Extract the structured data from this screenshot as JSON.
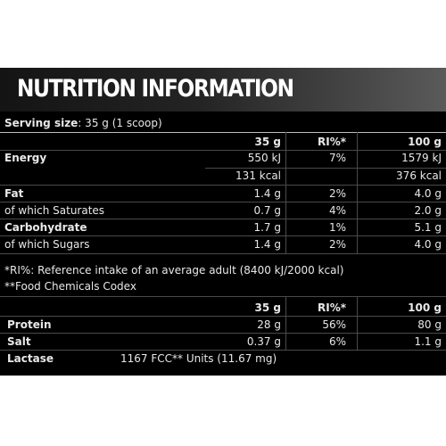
{
  "title": "NUTRITION INFORMATION",
  "serving_label": "Serving size",
  "serving_value": ": 35 g (1 scoop)",
  "table1": {
    "col_35g": "35 g",
    "col_ri": "RI%*",
    "col_100g": "100 g",
    "rows": [
      {
        "name": "Energy",
        "v35": "550 kJ",
        "ri": "7%",
        "v100": "1579 kJ"
      },
      {
        "name": "",
        "v35": "131 kcal",
        "ri": "",
        "v100": "376 kcal"
      },
      {
        "name": "Fat",
        "v35": "1.4 g",
        "ri": "2%",
        "v100": "4.0 g"
      },
      {
        "name": "of which Saturates",
        "v35": "0.7 g",
        "ri": "4%",
        "v100": "2.0 g"
      },
      {
        "name": "Carbohydrate",
        "v35": "1.7 g",
        "ri": "1%",
        "v100": "5.1 g"
      },
      {
        "name": "of which Sugars",
        "v35": "1.4 g",
        "ri": "2%",
        "v100": "4.0 g"
      }
    ]
  },
  "footnotes": [
    "*RI%: Reference intake of an average adult (8400 kJ/2000 kcal)",
    "**Food Chemicals Codex"
  ],
  "table2": {
    "col_35g": "35 g",
    "col_ri": "RI%*",
    "col_100g": "100 g",
    "rows": [
      {
        "name": "Protein",
        "v35": "28 g",
        "ri": "56%",
        "v100": "80 g"
      },
      {
        "name": "Salt",
        "v35": "0.37 g",
        "ri": "6%",
        "v100": "1.1 g"
      }
    ],
    "lactase_label": "Lactase",
    "lactase_value": "1167 FCC** Units (11.67 mg)"
  },
  "colors": {
    "background": "#000000",
    "text": "#e8e8e8",
    "header_gradient_end": "#5a5a5a"
  }
}
